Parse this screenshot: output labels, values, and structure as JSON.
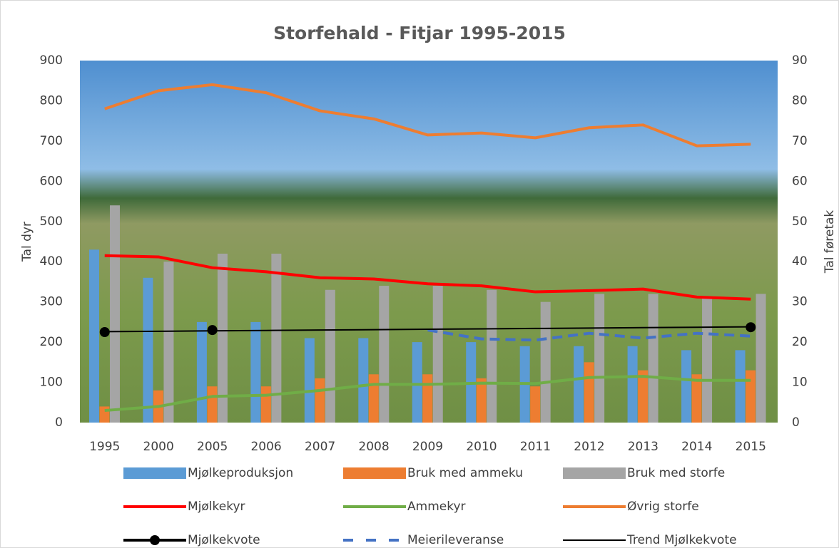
{
  "chart_data": {
    "type": "combo",
    "title": "Storfehald - Fitjar 1995-2015",
    "y_label": "Tal dyr",
    "y2_label": "Tal føretak",
    "categories": [
      "1995",
      "2000",
      "2005",
      "2006",
      "2007",
      "2008",
      "2009",
      "2010",
      "2011",
      "2012",
      "2013",
      "2014",
      "2015"
    ],
    "ylim": [
      0,
      900
    ],
    "yticks": [
      0,
      100,
      200,
      300,
      400,
      500,
      600,
      700,
      800,
      900
    ],
    "y2lim": [
      0,
      90
    ],
    "y2ticks": [
      0,
      10,
      20,
      30,
      40,
      50,
      60,
      70,
      80,
      90
    ],
    "legend": "bottom",
    "series": [
      {
        "name": "Mjølkeproduksjon",
        "kind": "bar",
        "axis": "y2",
        "color": "#5b9bd5",
        "values": [
          43,
          36,
          25,
          25,
          21,
          21,
          20,
          20,
          19,
          19,
          19,
          18,
          18
        ]
      },
      {
        "name": "Bruk med ammeku",
        "kind": "bar",
        "axis": "y2",
        "color": "#ed7d31",
        "values": [
          4,
          8,
          9,
          9,
          11,
          12,
          12,
          11,
          9,
          15,
          13,
          12,
          13
        ]
      },
      {
        "name": "Bruk med storfe",
        "kind": "bar",
        "axis": "y2",
        "color": "#a5a5a5",
        "values": [
          54,
          40,
          42,
          42,
          33,
          34,
          34,
          33,
          30,
          32,
          32,
          31,
          32
        ]
      },
      {
        "name": "Mjølkekyr",
        "kind": "line",
        "color": "#ff0000",
        "values": [
          415,
          412,
          385,
          375,
          360,
          357,
          345,
          340,
          325,
          328,
          332,
          312,
          307
        ]
      },
      {
        "name": "Ammekyr",
        "kind": "line",
        "color": "#70ad47",
        "values": [
          30,
          40,
          65,
          68,
          80,
          95,
          95,
          98,
          97,
          112,
          115,
          105,
          105
        ]
      },
      {
        "name": "Øvrig storfe",
        "kind": "line",
        "color": "#ed7d31",
        "values": [
          780,
          825,
          840,
          820,
          775,
          755,
          715,
          720,
          708,
          733,
          740,
          688,
          692
        ]
      },
      {
        "name": "Mjølkekvote",
        "kind": "line",
        "marker": true,
        "color": "#000000",
        "values": [
          225,
          null,
          230,
          null,
          null,
          null,
          null,
          null,
          null,
          null,
          null,
          null,
          237
        ]
      },
      {
        "name": "Meierileveranse",
        "kind": "line",
        "dashed": true,
        "color": "#4472c4",
        "values": [
          null,
          null,
          null,
          null,
          null,
          null,
          230,
          208,
          205,
          222,
          210,
          222,
          215
        ]
      },
      {
        "name": "Trend Mjølkekvote",
        "kind": "line",
        "thin": true,
        "color": "#000000",
        "values": [
          226,
          227,
          228,
          229,
          230,
          231,
          232,
          233,
          234,
          235,
          236,
          237,
          238
        ]
      }
    ]
  }
}
